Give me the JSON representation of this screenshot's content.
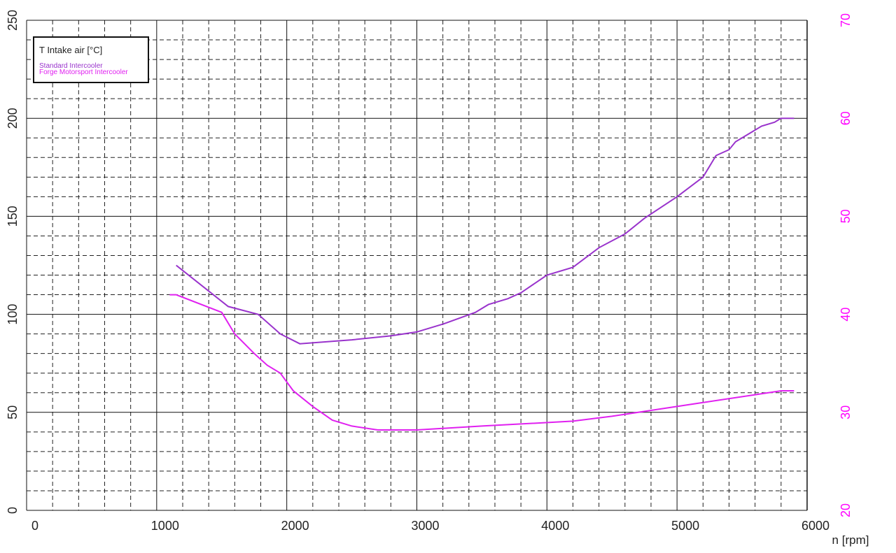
{
  "chart_data": {
    "type": "line",
    "legend_title": "T Intake air [°C]",
    "x_label": "n [rpm]",
    "xlim": [
      0,
      6000
    ],
    "xticks": [
      0,
      1000,
      2000,
      3000,
      4000,
      5000,
      6000
    ],
    "ylim": [
      0,
      250
    ],
    "yticks": [
      0,
      50,
      100,
      150,
      200,
      250
    ],
    "y2lim": [
      20,
      70
    ],
    "y2ticks": [
      20,
      30,
      40,
      50,
      60,
      70
    ],
    "y2_color": "#ff00ff",
    "grid": true,
    "legend": "upper left",
    "series": [
      {
        "name": "Standard Intercooler",
        "color": "#9933cc",
        "x": [
          1150,
          1550,
          1780,
          1950,
          2100,
          2500,
          2800,
          3000,
          3200,
          3450,
          3550,
          3700,
          3800,
          4000,
          4200,
          4400,
          4600,
          4750,
          5000,
          5200,
          5300,
          5400,
          5450,
          5550,
          5650,
          5750,
          5800,
          5900
        ],
        "values": [
          125,
          104,
          100,
          90,
          85,
          87,
          89,
          91,
          95,
          101,
          105,
          108,
          111,
          120,
          124,
          134,
          141,
          149,
          160,
          170,
          181,
          184,
          188,
          192,
          196,
          198,
          200,
          200
        ]
      },
      {
        "name": "Forge Motorsport Intercooler",
        "color": "#e020f0",
        "axis": "y2",
        "x": [
          1100,
          1150,
          1500,
          1600,
          1750,
          1850,
          1950,
          2050,
          2200,
          2350,
          2500,
          2700,
          3000,
          3500,
          4200,
          4500,
          4800,
          5200,
          5600,
          5800,
          5900
        ],
        "values": [
          42,
          42,
          40.2,
          38,
          36,
          34.8,
          34,
          32.2,
          30.6,
          29.2,
          28.6,
          28.2,
          28.2,
          28.6,
          29.1,
          29.6,
          30.2,
          31,
          31.8,
          32.2,
          32.2
        ]
      }
    ]
  }
}
